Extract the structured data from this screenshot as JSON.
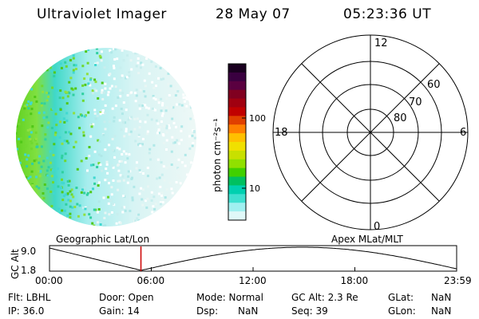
{
  "header": {
    "instrument": "Ultraviolet Imager",
    "date": "28 May 07",
    "time": "05:23:36 UT"
  },
  "colorbar": {
    "unit_label": "photon cm⁻²s⁻¹",
    "tick_100": "100",
    "tick_10": "10",
    "colors_top_to_bottom": [
      "#1a0020",
      "#3a0040",
      "#5a0040",
      "#800020",
      "#a00010",
      "#c00000",
      "#e04000",
      "#ff8000",
      "#ffc000",
      "#f0e000",
      "#c8e000",
      "#90e000",
      "#40d000",
      "#00c060",
      "#00d0b0",
      "#40e0d0",
      "#a0f0f0",
      "#e0f8f8"
    ]
  },
  "polar_plot": {
    "mlt_labels": {
      "top": "12",
      "left": "18",
      "right": "6",
      "bottom": "0"
    },
    "lat_labels": [
      "60",
      "70",
      "80"
    ]
  },
  "timeline": {
    "left_title": "Geographic Lat/Lon",
    "right_title": "Apex MLat/MLT",
    "axis_label": "GC Alt",
    "y_top": "9.0",
    "y_bottom": "1.8",
    "x_ticks": [
      "00:00",
      "06:00",
      "12:00",
      "18:00",
      "23:59"
    ],
    "cursor_time_hours": 5.39,
    "cursor_color": "#cc0000"
  },
  "info": {
    "filter": "Flt: LBHL",
    "ip": "IP: 36.0",
    "door": "Door: Open",
    "gain": "Gain: 14",
    "mode": "Mode: Normal",
    "dsp_label": "Dsp:",
    "dsp_value": "NaN",
    "gc_alt": "GC Alt: 2.3 Re",
    "seq": "Seq: 39",
    "glat_label": "GLat:",
    "glat_value": "NaN",
    "glon_label": "GLon:",
    "glon_value": "NaN"
  }
}
